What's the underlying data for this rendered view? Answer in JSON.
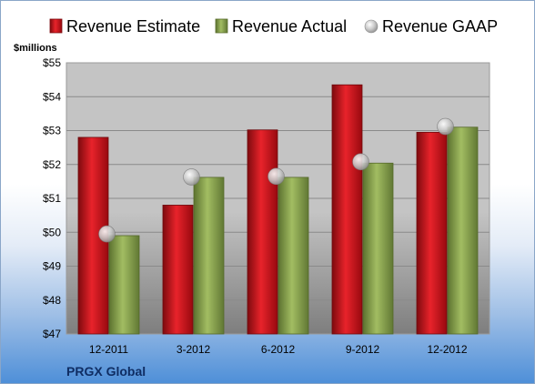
{
  "chart_data": {
    "type": "bar",
    "title": "",
    "company": "PRGX Global",
    "ylabel": "$millions",
    "categories": [
      "12-2011",
      "3-2012",
      "6-2012",
      "9-2012",
      "12-2012"
    ],
    "ylim": [
      47,
      55
    ],
    "yticks": [
      "$47",
      "$48",
      "$49",
      "$50",
      "$51",
      "$52",
      "$53",
      "$54",
      "$55"
    ],
    "grid": true,
    "legend_position": "top",
    "series": [
      {
        "name": "Revenue Estimate",
        "type": "bar",
        "color": "#c8141c",
        "values": [
          52.8,
          50.8,
          53.02,
          54.35,
          52.95
        ]
      },
      {
        "name": "Revenue Actual",
        "type": "bar",
        "color": "#86a14a",
        "values": [
          49.9,
          51.62,
          51.62,
          52.04,
          53.1
        ]
      },
      {
        "name": "Revenue GAAP",
        "type": "marker",
        "color": "#b8b8b8",
        "values": [
          49.95,
          51.63,
          51.65,
          52.08,
          53.12
        ]
      }
    ]
  }
}
